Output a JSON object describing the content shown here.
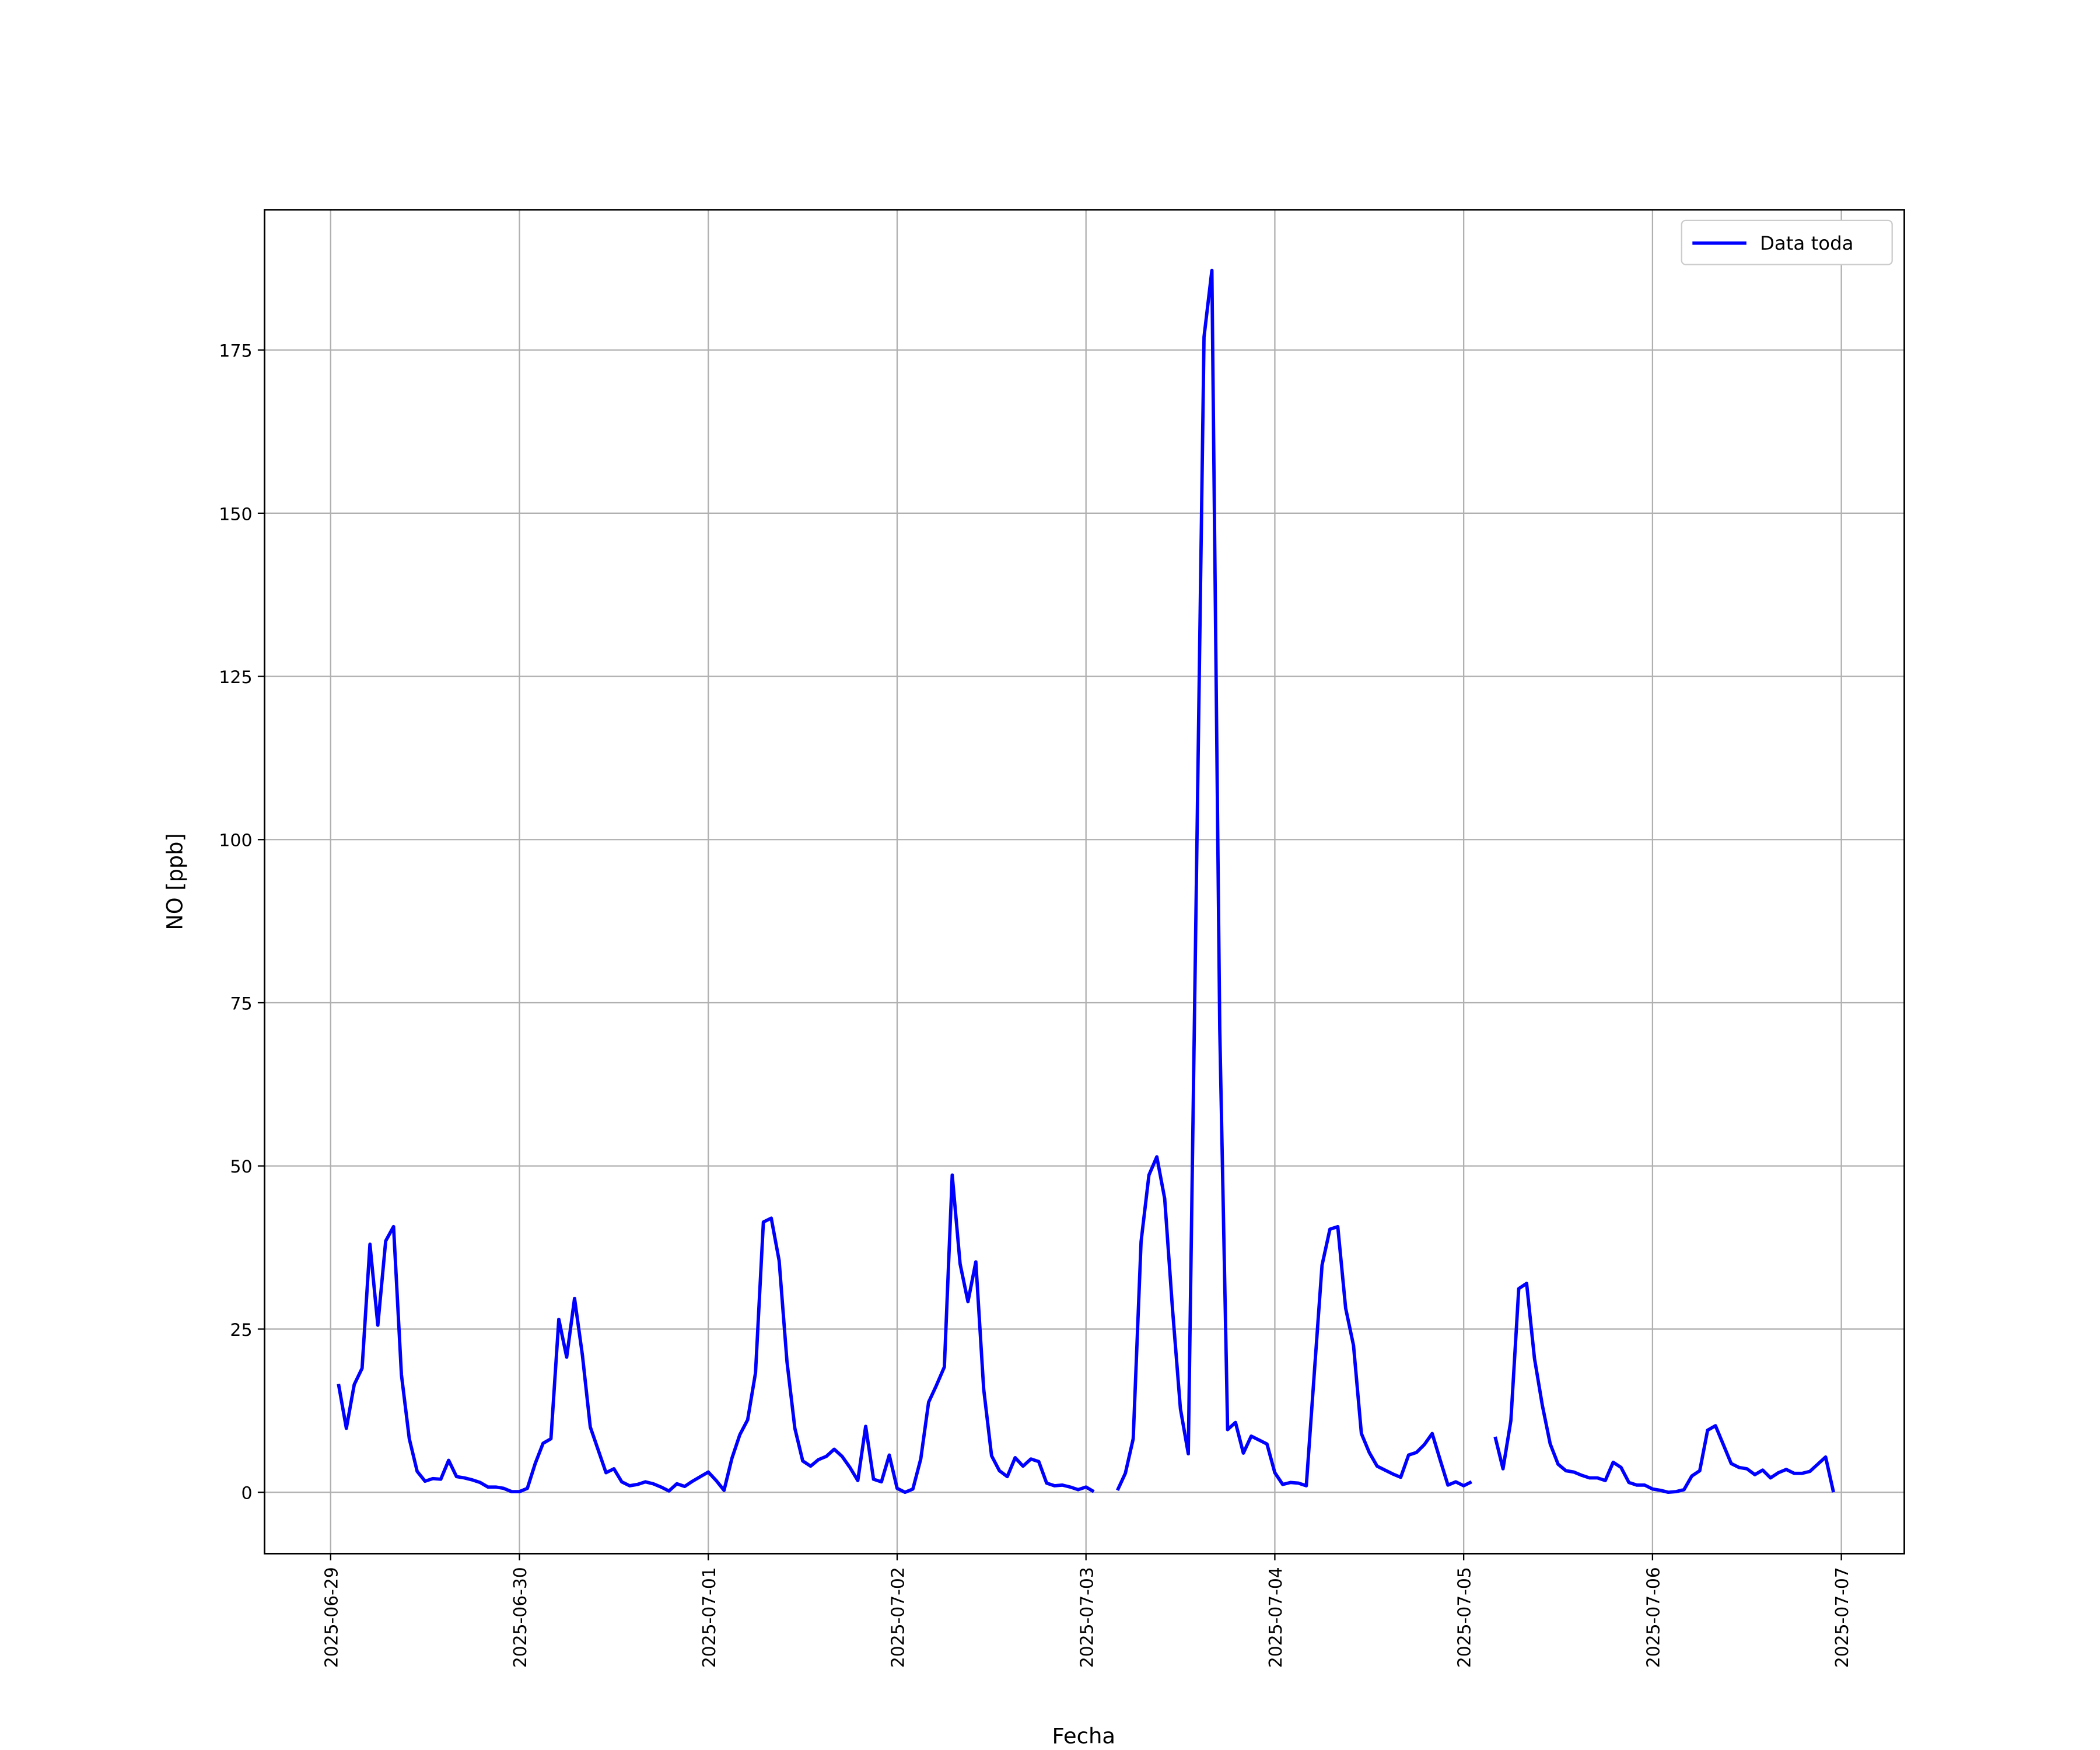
{
  "chart_data": {
    "type": "line",
    "xlabel": "Fecha",
    "ylabel": "NO [ppb]",
    "x": [
      1,
      2,
      3,
      4,
      5,
      6,
      7,
      8,
      9,
      10,
      11,
      12,
      13,
      14,
      15,
      16,
      17,
      18,
      19,
      20,
      21,
      22,
      23,
      24,
      25,
      26,
      27,
      28,
      29,
      30,
      31,
      32,
      33,
      34,
      35,
      36,
      37,
      38,
      39,
      40,
      41,
      42,
      43,
      44,
      45,
      46,
      47,
      48,
      49,
      50,
      51,
      52,
      53,
      54,
      55,
      56,
      57,
      58,
      59,
      60,
      61,
      62,
      63,
      64,
      65,
      66,
      67,
      68,
      69,
      70,
      71,
      72,
      73,
      74,
      75,
      76,
      77,
      78,
      79,
      80,
      81,
      82,
      83,
      84,
      85,
      86,
      87,
      88,
      89,
      90,
      91,
      92,
      93,
      94,
      95,
      96,
      97,
      98,
      99,
      100,
      101,
      102,
      103,
      104,
      105,
      106,
      107,
      108,
      109,
      110,
      111,
      112,
      113,
      114,
      115,
      116,
      117,
      118,
      119,
      120,
      121,
      122,
      123,
      124,
      125,
      126,
      127,
      128,
      129,
      130,
      131,
      132,
      133,
      134,
      135,
      136,
      137,
      138,
      139,
      140,
      141,
      142,
      143,
      144,
      145,
      146,
      147,
      148,
      149,
      150,
      151,
      152,
      153,
      154,
      155,
      156,
      157,
      158,
      159,
      160,
      161,
      162,
      163,
      164,
      165,
      166,
      167,
      168,
      169,
      170,
      171,
      172,
      173,
      174,
      175,
      176,
      177,
      178,
      179,
      180,
      181,
      182,
      183,
      184,
      185,
      186,
      187,
      188,
      189,
      190,
      191
    ],
    "series": [
      {
        "name": "Data toda",
        "color": "#0000ff",
        "values": [
          16.6,
          9.8,
          16.5,
          19,
          38,
          25.6,
          38.5,
          40.7,
          18,
          8.2,
          3.2,
          1.7,
          2.1,
          2,
          4.9,
          2.4,
          2.2,
          1.9,
          1.5,
          0.8,
          0.8,
          0.6,
          0.1,
          0.1,
          0.6,
          4.4,
          7.5,
          8.2,
          26.5,
          20.7,
          29.7,
          21,
          10,
          6.5,
          3,
          3.6,
          1.6,
          1,
          1.2,
          1.6,
          1.3,
          0.8,
          0.2,
          1.3,
          0.9,
          1.7,
          2.4,
          3.1,
          1.8,
          0.3,
          5.2,
          8.8,
          11.1,
          18.3,
          41.4,
          42,
          35.5,
          20,
          9.8,
          4.8,
          4,
          5,
          5.5,
          6.6,
          5.5,
          3.8,
          1.8,
          10.1,
          2,
          1.6,
          5.7,
          0.6,
          0,
          0.5,
          5.1,
          13.8,
          16.4,
          19.2,
          48.6,
          35,
          29.2,
          35.3,
          15.8,
          5.6,
          3.3,
          2.4,
          5.3,
          4,
          5.1,
          4.7,
          1.4,
          1,
          1.1,
          0.8,
          0.4,
          0.8,
          0.1,
          null,
          null,
          0.3,
          2.9,
          8.2,
          38.4,
          48.6,
          51.4,
          45,
          28,
          12.8,
          5.9,
          91,
          177,
          187.2,
          71,
          9.6,
          10.7,
          6,
          8.6,
          8,
          7.4,
          3,
          1.2,
          1.5,
          1.4,
          1,
          18,
          34.8,
          40.3,
          40.7,
          28.2,
          22.5,
          9,
          6.1,
          4,
          3.4,
          2.8,
          2.3,
          5.7,
          6.1,
          7.3,
          9,
          5,
          1.1,
          1.6,
          1,
          1.6,
          null,
          null,
          8.5,
          3.6,
          11,
          31.2,
          32,
          20.5,
          13.3,
          7.4,
          4.3,
          3.3,
          3.1,
          2.6,
          2.2,
          2.2,
          1.8,
          4.6,
          3.8,
          1.5,
          1.1,
          1.1,
          0.5,
          0.3,
          0,
          0.1,
          0.4,
          2.5,
          3.3,
          9.5,
          10.2,
          7.3,
          4.4,
          3.8,
          3.6,
          2.7,
          3.4,
          2.2,
          3,
          3.5,
          2.9,
          2.9,
          3.2,
          4.3,
          5.4,
          0
        ]
      }
    ],
    "xlim": [
      -8.4,
      200
    ],
    "xticks": [
      {
        "value": 0,
        "label": "2025-06-29"
      },
      {
        "value": 24,
        "label": "2025-06-30"
      },
      {
        "value": 48,
        "label": "2025-07-01"
      },
      {
        "value": 72,
        "label": "2025-07-02"
      },
      {
        "value": 96,
        "label": "2025-07-03"
      },
      {
        "value": 120,
        "label": "2025-07-04"
      },
      {
        "value": 144,
        "label": "2025-07-05"
      },
      {
        "value": 168,
        "label": "2025-07-06"
      },
      {
        "value": 192,
        "label": "2025-07-07"
      }
    ],
    "ylim": [
      -9.4,
      196.5
    ],
    "yticks": [
      0,
      25,
      50,
      75,
      100,
      125,
      150,
      175
    ],
    "grid": true,
    "legend": "upper right"
  }
}
